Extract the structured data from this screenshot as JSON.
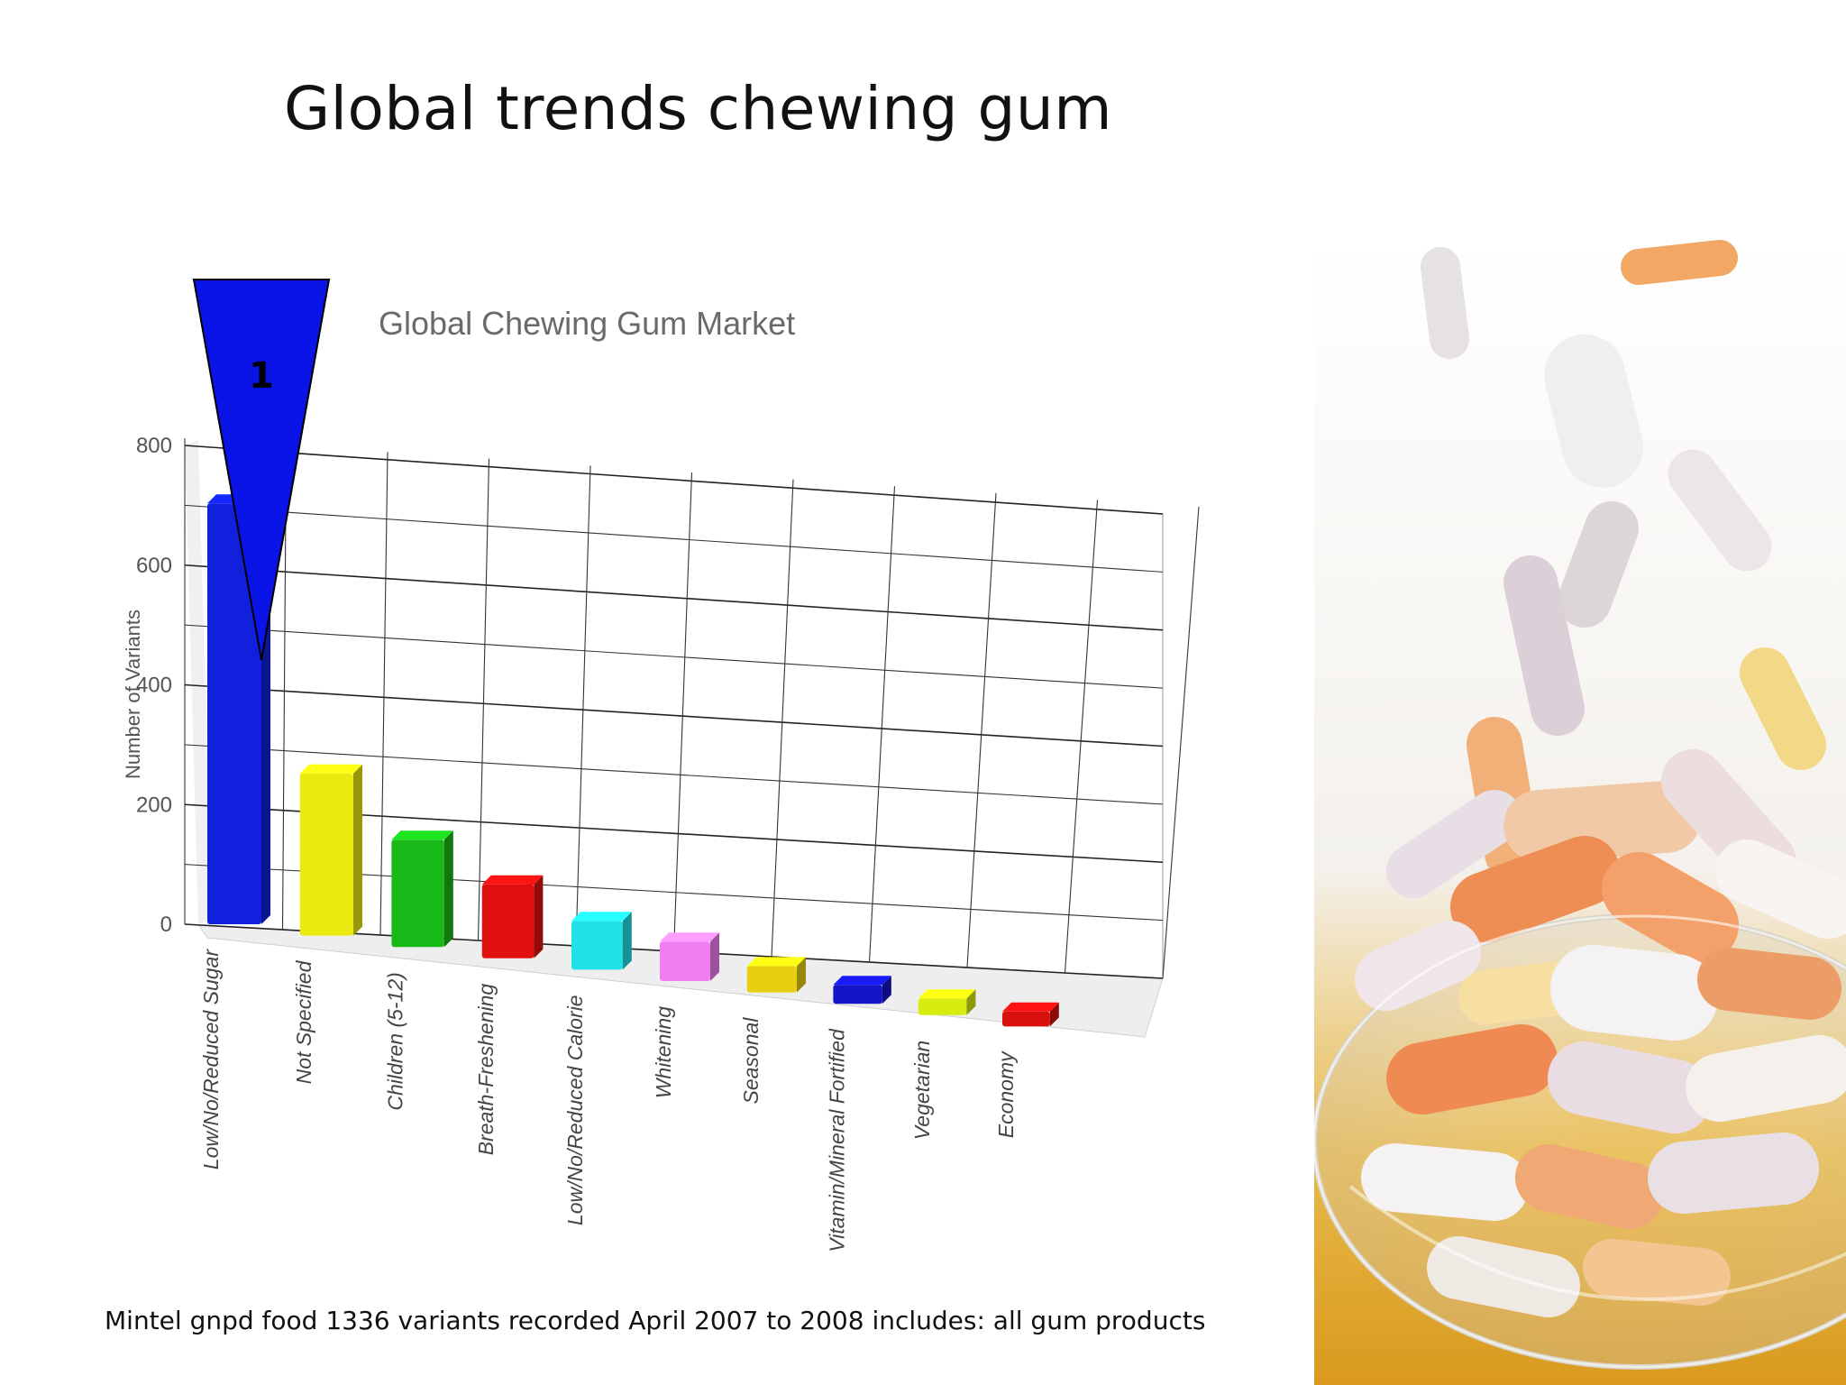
{
  "slide": {
    "title": "Global trends chewing gum",
    "footnote": "Mintel gnpd food 1336 variants recorded April 2007 to 2008 includes: all gum products"
  },
  "callout": {
    "label": "1",
    "color": "#0a14e6"
  },
  "chart_data": {
    "type": "bar",
    "title": "Global Chewing Gum Market",
    "xlabel": "",
    "ylabel": "Number of Variants",
    "ylim": [
      0,
      800
    ],
    "yticks": [
      0,
      200,
      400,
      600,
      800
    ],
    "grid": true,
    "categories": [
      "Low/No/Reduced Sugar",
      "Not Specified",
      "Children (5-12)",
      "Breath-Freshening",
      "Low/No/Reduced Calorie",
      "Whitening",
      "Seasonal",
      "Vitamin/Mineral Fortified",
      "Vegetarian",
      "Economy"
    ],
    "values": [
      760,
      290,
      190,
      130,
      85,
      68,
      45,
      32,
      28,
      25
    ],
    "colors": [
      "#1020dc",
      "#eaea10",
      "#18b818",
      "#e01010",
      "#20e0e8",
      "#f07ef0",
      "#e8d010",
      "#1414c8",
      "#d8ec10",
      "#d81010"
    ]
  },
  "photo": {
    "description_icon": "gum-bowl-photo"
  }
}
